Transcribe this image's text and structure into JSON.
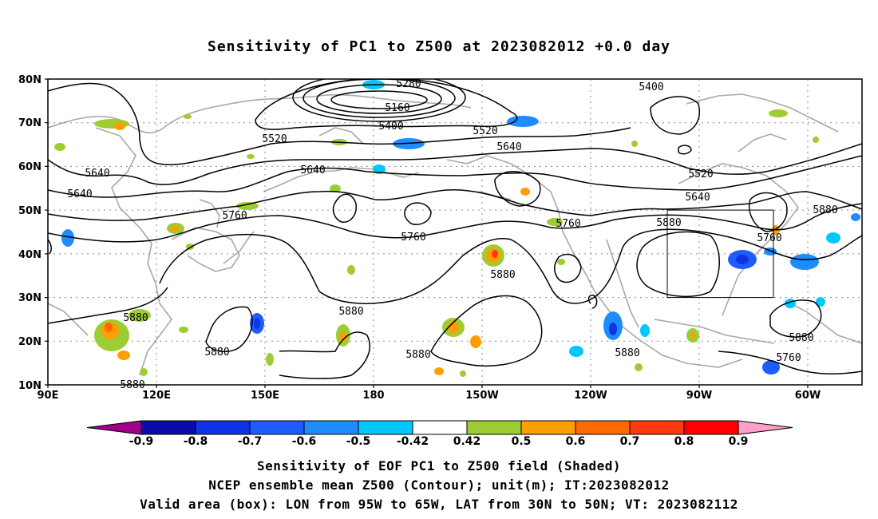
{
  "title": "Sensitivity of PC1 to Z500 at 2023082012 +0.0 day",
  "axes": {
    "lon_labels": [
      "90E",
      "120E",
      "150E",
      "180",
      "150W",
      "120W",
      "90W",
      "60W"
    ],
    "lat_labels": [
      "80N",
      "70N",
      "60N",
      "50N",
      "40N",
      "30N",
      "20N",
      "10N"
    ]
  },
  "contour_labels": [
    "5280",
    "5160",
    "5400",
    "5520",
    "5640",
    "5760",
    "5880",
    "5400",
    "5520",
    "5640",
    "5640",
    "5520",
    "5640",
    "5760",
    "5760",
    "5760",
    "5880",
    "5880",
    "5880",
    "5880",
    "5880",
    "5880",
    "5880",
    "5760",
    "5880",
    "5640",
    "5880",
    "5880",
    "5880",
    "5880"
  ],
  "valid_box": {
    "lon": [
      "95W",
      "65W"
    ],
    "lat": [
      "30N",
      "50N"
    ]
  },
  "colorbar": {
    "labels": [
      "-0.9",
      "-0.8",
      "-0.7",
      "-0.6",
      "-0.5",
      "-0.42",
      "0.42",
      "0.5",
      "0.6",
      "0.7",
      "0.8",
      "0.9"
    ],
    "colors": [
      "#a0008a",
      "#0a0aa8",
      "#0f33e6",
      "#1f5cff",
      "#1e8cff",
      "#00c8ff",
      "#ffffff",
      "#9ccd32",
      "#ff9e00",
      "#ff6a00",
      "#ff3a10",
      "#ff0000",
      "#ff9ec8"
    ]
  },
  "captions": {
    "line1": "Sensitivity of EOF PC1 to Z500 field (Shaded)",
    "line2": "NCEP ensemble mean Z500 (Contour); unit(m); IT:2023082012",
    "line3": "Valid area (box): LON from 95W to 65W, LAT from 30N to 50N; VT: 2023082112"
  }
}
